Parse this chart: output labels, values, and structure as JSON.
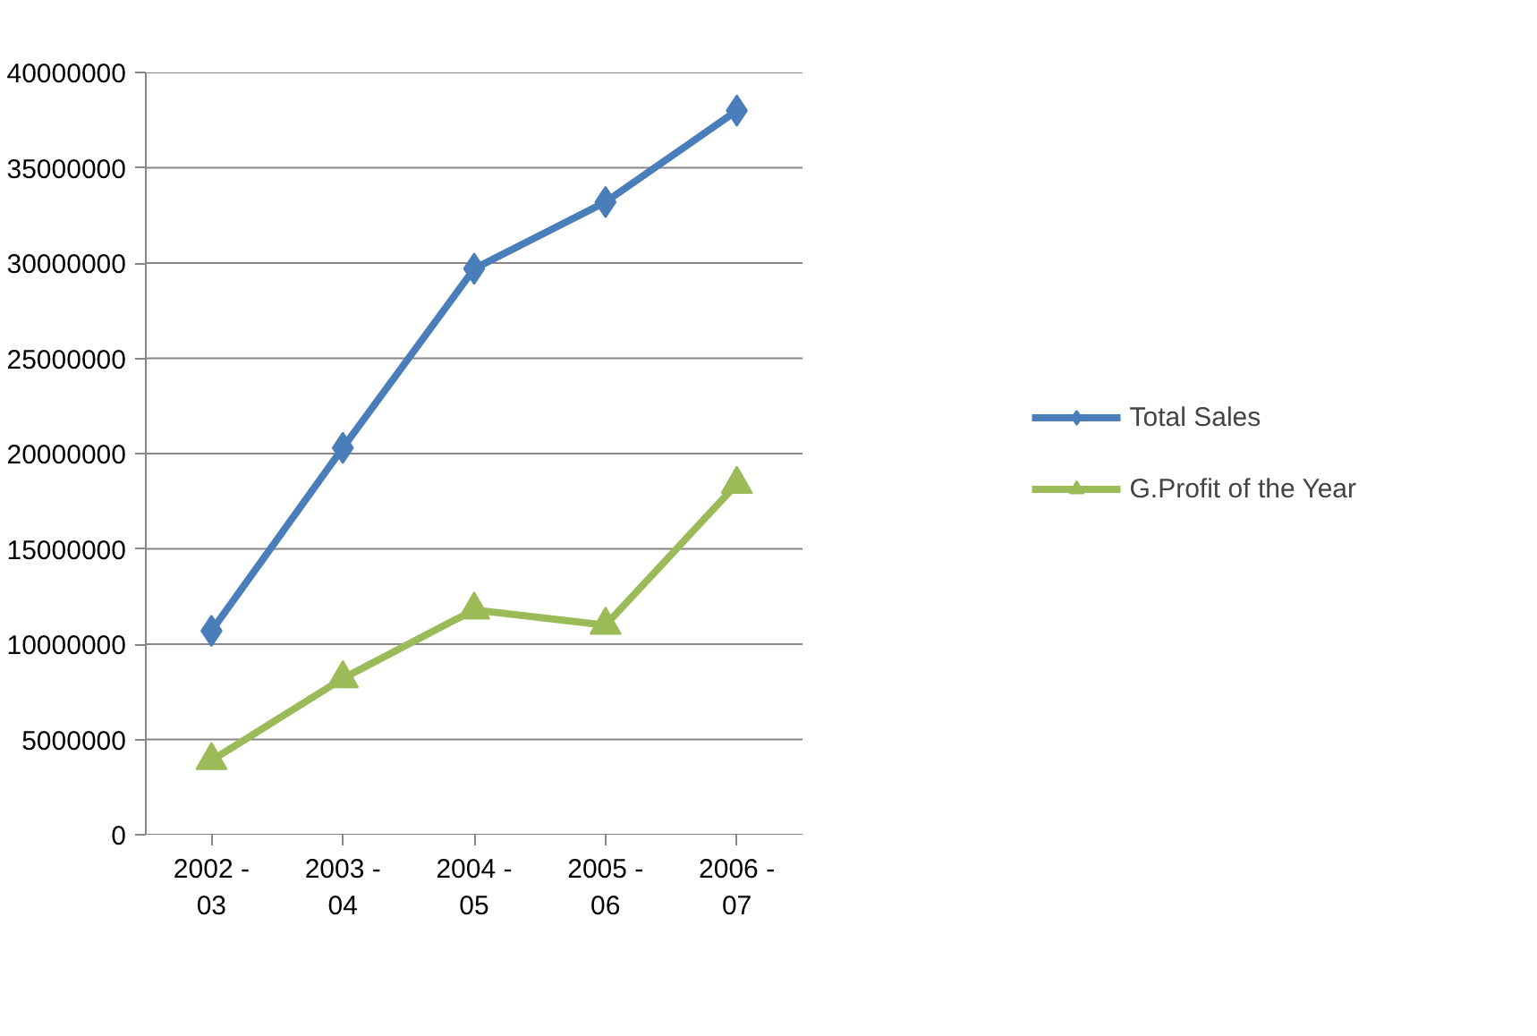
{
  "chart_data": {
    "type": "line",
    "categories": [
      "2002 - 03",
      "2003 - 04",
      "2004 - 05",
      "2005 - 06",
      "2006 - 07"
    ],
    "series": [
      {
        "name": "Total Sales",
        "color": "#4a7ebb",
        "marker": "diamond",
        "values": [
          10700000,
          20300000,
          29700000,
          33200000,
          38000000
        ]
      },
      {
        "name": "G.Profit of the Year",
        "color": "#9bbb59",
        "marker": "triangle",
        "values": [
          3900000,
          8200000,
          11800000,
          11000000,
          18400000
        ]
      }
    ],
    "ylim": [
      0,
      40000000
    ],
    "yticks": [
      0,
      5000000,
      10000000,
      15000000,
      20000000,
      25000000,
      30000000,
      35000000,
      40000000
    ],
    "grid": "y",
    "legend": "right",
    "line_style": "solid"
  }
}
